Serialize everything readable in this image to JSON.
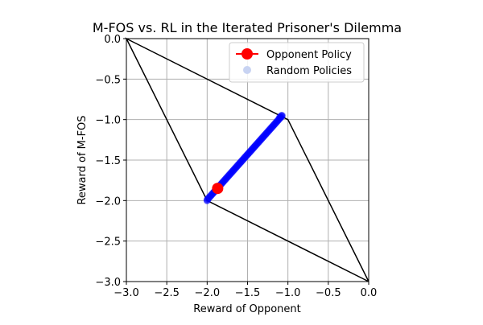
{
  "chart_data": {
    "type": "scatter",
    "title": "M-FOS vs. RL in the Iterated Prisoner's Dilemma",
    "xlabel": "Reward of Opponent",
    "ylabel": "Reward of M-FOS",
    "xlim": [
      -3.0,
      0.0
    ],
    "ylim": [
      -3.0,
      0.0
    ],
    "xticks": [
      -3.0,
      -2.5,
      -2.0,
      -1.5,
      -1.0,
      -0.5,
      0.0
    ],
    "yticks": [
      -3.0,
      -2.5,
      -2.0,
      -1.5,
      -1.0,
      -0.5,
      0.0
    ],
    "xtick_labels": [
      "−3.0",
      "−2.5",
      "−2.0",
      "−1.5",
      "−1.0",
      "−0.5",
      "0.0"
    ],
    "ytick_labels": [
      "−3.0",
      "−2.5",
      "−2.0",
      "−1.5",
      "−1.0",
      "−0.5",
      "0.0"
    ],
    "grid": true,
    "legend_position": "top-right",
    "boundary": {
      "name": "feasible-payoff-region",
      "points": [
        [
          0.0,
          -3.0
        ],
        [
          -1.0,
          -1.0
        ],
        [
          -3.0,
          0.0
        ],
        [
          -2.0,
          -2.0
        ],
        [
          0.0,
          -3.0
        ]
      ],
      "color": "#000000"
    },
    "series": [
      {
        "name": "Opponent Policy",
        "marker": "circle-large",
        "color": "#ff0000",
        "points": [
          [
            -1.87,
            -1.85
          ]
        ]
      },
      {
        "name": "Random Policies",
        "marker": "circle",
        "color": "#0000ff",
        "legend_color": "#c8d3f2",
        "segment": {
          "from": [
            -2.0,
            -1.99
          ],
          "to": [
            -1.07,
            -0.95
          ],
          "count": 160
        },
        "extra_points": [
          [
            -2.0,
            -2.0
          ],
          [
            -1.08,
            -0.95
          ],
          [
            -1.1,
            -0.97
          ]
        ]
      }
    ]
  }
}
